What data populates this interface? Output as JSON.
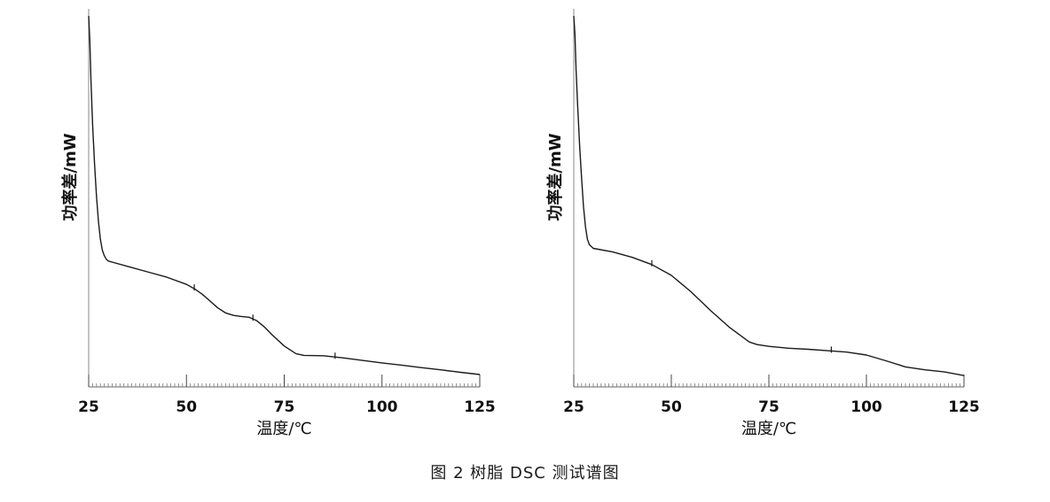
{
  "caption": "图 2 树脂 DSC 测试谱图",
  "chart_data": [
    {
      "type": "line",
      "title": "",
      "xlabel": "温度/℃",
      "ylabel": "功率差/mW",
      "xlim": [
        25,
        125
      ],
      "ylim": [
        0,
        100
      ],
      "y_ticks_shown": false,
      "x_ticks": [
        25,
        50,
        75,
        100,
        125
      ],
      "x_tick_labels": [
        "25",
        "50",
        "75",
        "100",
        "125"
      ],
      "grid": false,
      "series": [
        {
          "x": [
            25.0,
            25.3,
            25.6,
            26.0,
            26.5,
            27.0,
            27.5,
            28.0,
            28.5,
            29.0,
            29.5,
            30,
            35,
            40,
            45,
            50,
            52,
            54,
            56,
            58,
            60,
            62,
            64,
            66,
            68,
            70,
            72,
            75,
            78,
            80,
            85,
            90,
            95,
            100,
            105,
            110,
            115,
            120,
            125
          ],
          "y": [
            100.0,
            93.0,
            82.0,
            70.0,
            59.0,
            50.0,
            43.0,
            38.0,
            35.0,
            33.5,
            32.5,
            32.0,
            30.5,
            29.0,
            27.5,
            25.5,
            24.3,
            22.8,
            20.9,
            19.0,
            17.6,
            16.9,
            16.6,
            16.4,
            15.4,
            13.6,
            11.4,
            8.4,
            6.3,
            5.8,
            5.7,
            5.1,
            4.4,
            3.7,
            3.1,
            2.4,
            1.8,
            1.1,
            0.5
          ]
        }
      ],
      "markers_x": [
        52,
        67,
        88
      ]
    },
    {
      "type": "line",
      "title": "",
      "xlabel": "温度/℃",
      "ylabel": "功率差/mW",
      "xlim": [
        25,
        125
      ],
      "ylim": [
        0,
        100
      ],
      "y_ticks_shown": false,
      "x_ticks": [
        25,
        50,
        75,
        100,
        125
      ],
      "x_tick_labels": [
        "25",
        "50",
        "75",
        "100",
        "125"
      ],
      "grid": false,
      "series": [
        {
          "x": [
            25.0,
            25.3,
            25.6,
            26.0,
            26.5,
            27.0,
            27.5,
            28.0,
            28.5,
            29.0,
            29.5,
            30,
            35,
            40,
            45,
            50,
            55,
            60,
            65,
            70,
            72,
            75,
            80,
            85,
            90,
            95,
            100,
            105,
            110,
            115,
            120,
            125
          ],
          "y": [
            100.0,
            95.0,
            85.0,
            75.0,
            64.0,
            55.0,
            47.0,
            41.5,
            38.0,
            36.5,
            36.0,
            35.5,
            34.5,
            33.0,
            31.0,
            28.0,
            23.5,
            18.3,
            13.5,
            9.5,
            8.8,
            8.3,
            7.8,
            7.5,
            7.1,
            6.7,
            5.9,
            4.3,
            2.6,
            1.8,
            1.2,
            0.2
          ]
        }
      ],
      "markers_x": [
        45,
        91
      ]
    }
  ]
}
